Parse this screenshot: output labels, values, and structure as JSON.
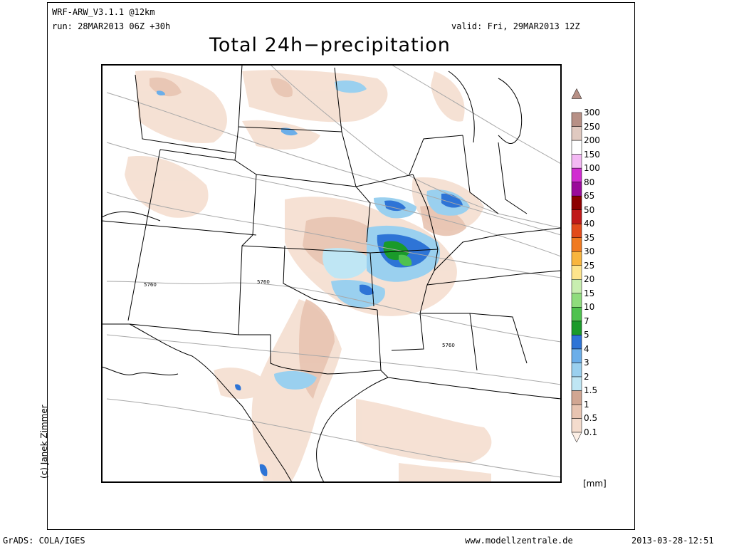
{
  "header": {
    "model": "WRF-ARW_V3.1.1 @12km",
    "run": "run: 28MAR2013 06Z +30h",
    "valid": "valid: Fri, 29MAR2013 12Z",
    "title": "Total 24h−precipitation"
  },
  "copyright": "(c) Janek Zimmer",
  "footer": {
    "left": "GrADS: COLA/IGES",
    "center": "www.modellzentrale.de",
    "right": "2013-03-28-12:51"
  },
  "legend": {
    "unit": "[mm]",
    "levels": [
      {
        "label": "0.1",
        "color": "#fcefe6"
      },
      {
        "label": "0.5",
        "color": "#f4dccd"
      },
      {
        "label": "1",
        "color": "#e8c4b1"
      },
      {
        "label": "1.5",
        "color": "#d1a692"
      },
      {
        "label": "2",
        "color": "#bfe6f4"
      },
      {
        "label": "3",
        "color": "#9ad0ef"
      },
      {
        "label": "4",
        "color": "#6baee9"
      },
      {
        "label": "5",
        "color": "#2e74d6"
      },
      {
        "label": "7",
        "color": "#1a9a2a"
      },
      {
        "label": "10",
        "color": "#4fc24f"
      },
      {
        "label": "15",
        "color": "#8fdc7d"
      },
      {
        "label": "20",
        "color": "#c8eeb0"
      },
      {
        "label": "25",
        "color": "#fde48c"
      },
      {
        "label": "30",
        "color": "#f8b53e"
      },
      {
        "label": "35",
        "color": "#f07a20"
      },
      {
        "label": "40",
        "color": "#e24a1a"
      },
      {
        "label": "50",
        "color": "#c01818"
      },
      {
        "label": "65",
        "color": "#8c0000"
      },
      {
        "label": "80",
        "color": "#9a0a9a"
      },
      {
        "label": "100",
        "color": "#d12bd1"
      },
      {
        "label": "150",
        "color": "#f3b8f3"
      },
      {
        "label": "200",
        "color": "#ffffff"
      },
      {
        "label": "250",
        "color": "#e0c9c0"
      },
      {
        "label": "300",
        "color": "#b79086"
      }
    ]
  },
  "map": {
    "contour_labels": [
      "5760",
      "5760",
      "5760"
    ]
  }
}
